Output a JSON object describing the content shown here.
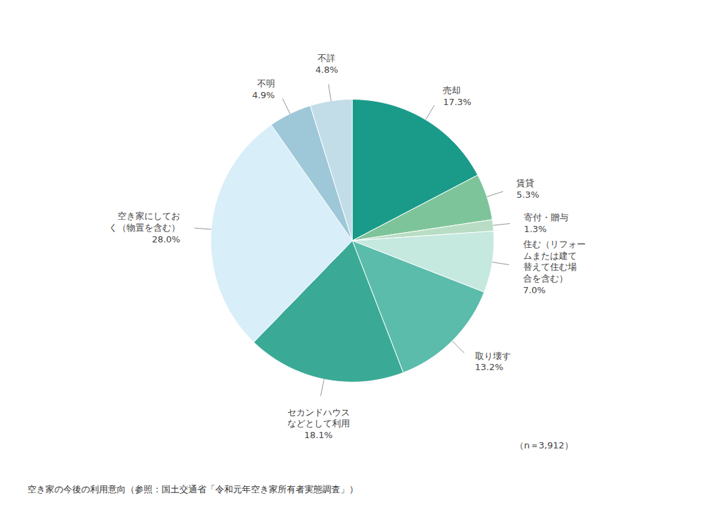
{
  "chart_data": {
    "type": "pie",
    "categories": [
      "売却",
      "賃貸",
      "寄付・贈与",
      "住む（リフォー\nムまたは建て\n替えて住む場\n合を含む）",
      "取り壊す",
      "セカンドハウス\nなどとして利用",
      "空き家にしてお\nく（物置を含む）",
      "不明",
      "不詳"
    ],
    "values": [
      17.3,
      5.3,
      1.3,
      7.0,
      13.2,
      18.1,
      28.0,
      4.9,
      4.8
    ],
    "value_labels": [
      "17.3%",
      "5.3%",
      "1.3%",
      "7.0%",
      "13.2%",
      "18.1%",
      "28.0%",
      "4.9%",
      "4.8%"
    ],
    "colors": [
      "#1a9b8a",
      "#7ec49a",
      "#b8ddc4",
      "#c5e8df",
      "#5bbcac",
      "#3aaa96",
      "#d8eef8",
      "#9ec8d8",
      "#c2dde8"
    ],
    "annotation": "（n＝3,912）",
    "caption": "空き家の今後の利用意向（参照：国土交通省「令和元年空き家所有者実態調査」）"
  }
}
